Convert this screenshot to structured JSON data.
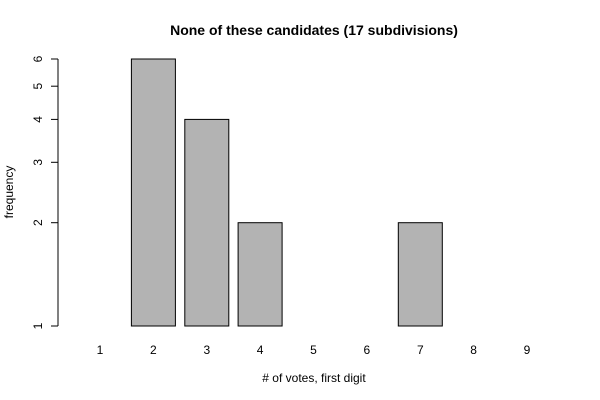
{
  "chart_data": {
    "type": "bar",
    "title": "None of these candidates (17 subdivisions)",
    "xlabel": "# of votes, first digit",
    "ylabel": "frequency",
    "y_scale": "log",
    "ylim": [
      1,
      6
    ],
    "y_ticks": [
      1,
      2,
      3,
      4,
      5,
      6
    ],
    "categories": [
      "1",
      "2",
      "3",
      "4",
      "5",
      "6",
      "7",
      "8",
      "9"
    ],
    "values": [
      1,
      6,
      4,
      2,
      0,
      1,
      2,
      1,
      0
    ],
    "bar_color": "#b3b3b3",
    "grid": false,
    "legend": "none"
  }
}
